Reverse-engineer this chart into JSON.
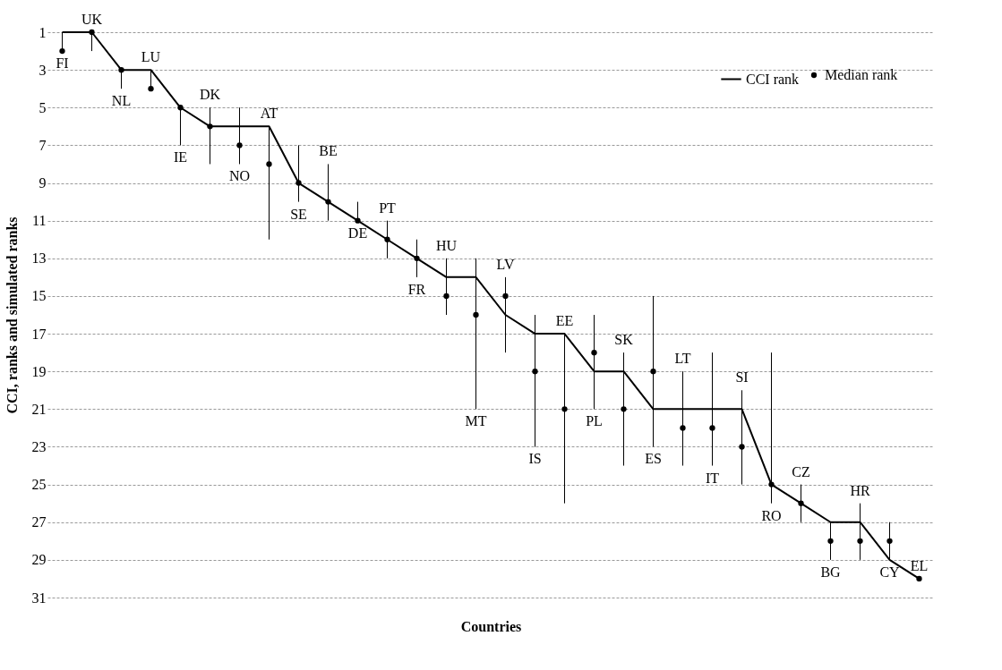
{
  "chart_data": {
    "type": "line",
    "xlabel": "Countries",
    "ylabel": "CCI, ranks and simulated ranks",
    "categories": [
      "FI",
      "UK",
      "NL",
      "LU",
      "IE",
      "DK",
      "NO",
      "AT",
      "SE",
      "BE",
      "DE",
      "PT",
      "FR",
      "HU",
      "MT",
      "LV",
      "IS",
      "EE",
      "PL",
      "SK",
      "ES",
      "LT",
      "IT",
      "SI",
      "RO",
      "CZ",
      "BG",
      "HR",
      "CY",
      "EL"
    ],
    "series": [
      {
        "name": "CCI rank",
        "type": "line",
        "color": "#000000",
        "marker": "none",
        "line_style": "solid",
        "values": [
          1,
          1,
          3,
          3,
          5,
          6,
          6,
          6,
          9,
          10,
          11,
          12,
          13,
          14,
          14,
          16,
          17,
          17,
          19,
          19,
          21,
          21,
          21,
          21,
          25,
          26,
          27,
          27,
          29,
          30
        ]
      },
      {
        "name": "Median rank",
        "type": "scatter",
        "color": "#000000",
        "marker": "circle",
        "values": [
          2,
          1,
          3,
          4,
          5,
          6,
          7,
          8,
          9,
          10,
          11,
          12,
          13,
          15,
          16,
          15,
          19,
          21,
          18,
          21,
          19,
          22,
          22,
          23,
          25,
          26,
          28,
          28,
          28,
          30
        ],
        "errors": [
          [
            1,
            2
          ],
          [
            1,
            2
          ],
          [
            3,
            4
          ],
          [
            3,
            4
          ],
          [
            5,
            7
          ],
          [
            5,
            8
          ],
          [
            5,
            8
          ],
          [
            6,
            12
          ],
          [
            7,
            10
          ],
          [
            8,
            11
          ],
          [
            10,
            11
          ],
          [
            11,
            13
          ],
          [
            12,
            14
          ],
          [
            13,
            16
          ],
          [
            13,
            21
          ],
          [
            14,
            18
          ],
          [
            16,
            23
          ],
          [
            17,
            26
          ],
          [
            16,
            21
          ],
          [
            18,
            24
          ],
          [
            15,
            23
          ],
          [
            19,
            24
          ],
          [
            18,
            24
          ],
          [
            20,
            25
          ],
          [
            18,
            26
          ],
          [
            25,
            27
          ],
          [
            27,
            29
          ],
          [
            26,
            29
          ],
          [
            27,
            29
          ],
          null
        ]
      }
    ],
    "ylim": [
      31,
      1
    ],
    "yticks": [
      1,
      3,
      5,
      7,
      9,
      11,
      13,
      15,
      17,
      19,
      21,
      23,
      25,
      27,
      29,
      31
    ],
    "grid": "y",
    "legend": "top right",
    "tick_labels": "y"
  }
}
